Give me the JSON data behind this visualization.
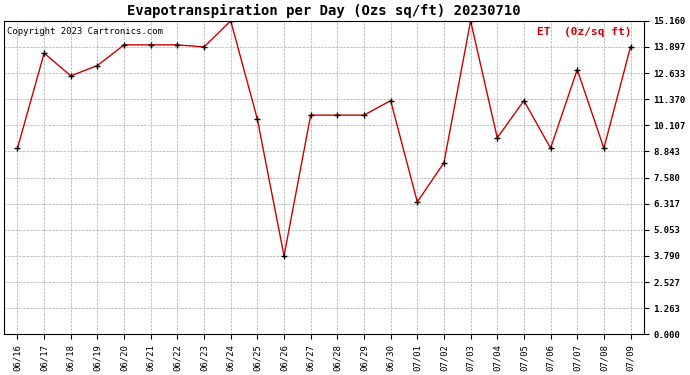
{
  "title": "Evapotranspiration per Day (Ozs sq/ft) 20230710",
  "copyright_text": "Copyright 2023 Cartronics.com",
  "legend_label": "ET  (0z/sq ft)",
  "dates": [
    "06/16",
    "06/17",
    "06/18",
    "06/19",
    "06/20",
    "06/21",
    "06/22",
    "06/23",
    "06/24",
    "06/25",
    "06/26",
    "06/27",
    "06/28",
    "06/29",
    "06/30",
    "07/01",
    "07/02",
    "07/03",
    "07/04",
    "07/05",
    "07/06",
    "07/07",
    "07/08",
    "07/09"
  ],
  "values": [
    9.0,
    13.6,
    12.5,
    13.0,
    14.0,
    14.0,
    14.0,
    13.9,
    15.16,
    10.4,
    3.79,
    10.6,
    10.6,
    10.6,
    11.3,
    6.4,
    8.3,
    15.16,
    9.5,
    11.3,
    9.0,
    12.8,
    9.0,
    13.9
  ],
  "line_color": "#cc0000",
  "marker": "+",
  "marker_color": "#000000",
  "background_color": "#ffffff",
  "grid_color": "#aaaaaa",
  "yticks": [
    0.0,
    1.263,
    2.527,
    3.79,
    5.053,
    6.317,
    7.58,
    8.843,
    10.107,
    11.37,
    12.633,
    13.897,
    15.16
  ],
  "ylim": [
    0.0,
    15.16
  ],
  "title_fontsize": 10,
  "legend_fontsize": 8,
  "copyright_fontsize": 6.5,
  "tick_fontsize": 6.5
}
